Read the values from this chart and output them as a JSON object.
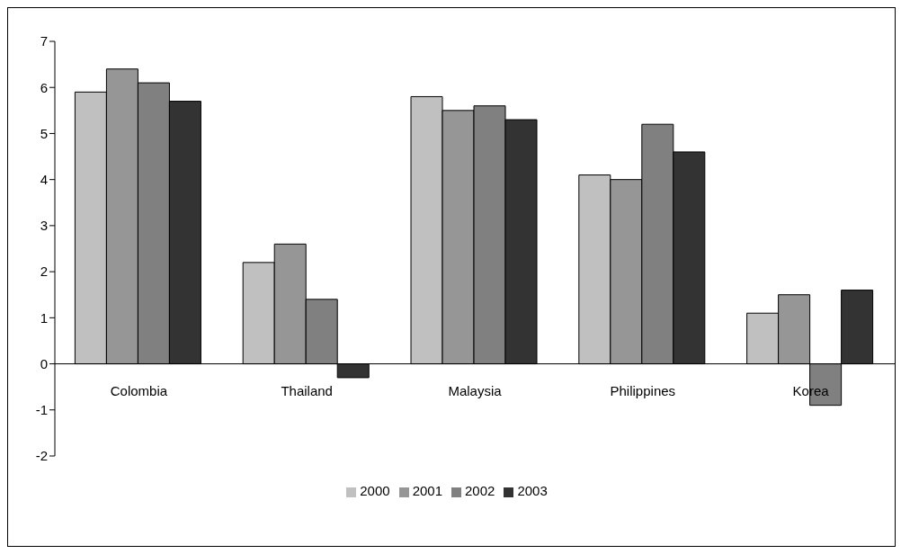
{
  "chart_data": {
    "type": "bar",
    "categories": [
      "Colombia",
      "Thailand",
      "Malaysia",
      "Philippines",
      "Korea"
    ],
    "series": [
      {
        "name": "2000",
        "color": "#c0c0c0",
        "values": [
          5.9,
          2.2,
          5.8,
          4.1,
          1.1
        ]
      },
      {
        "name": "2001",
        "color": "#969696",
        "values": [
          6.4,
          2.6,
          5.5,
          4.0,
          1.5
        ]
      },
      {
        "name": "2002",
        "color": "#808080",
        "values": [
          6.1,
          1.4,
          5.6,
          5.2,
          -0.9
        ]
      },
      {
        "name": "2003",
        "color": "#333333",
        "values": [
          5.7,
          -0.3,
          5.3,
          4.6,
          1.6
        ]
      }
    ],
    "ylim": [
      -2,
      7
    ],
    "yticks": [
      -2,
      -1,
      0,
      1,
      2,
      3,
      4,
      5,
      6,
      7
    ],
    "legend": "bottom"
  }
}
